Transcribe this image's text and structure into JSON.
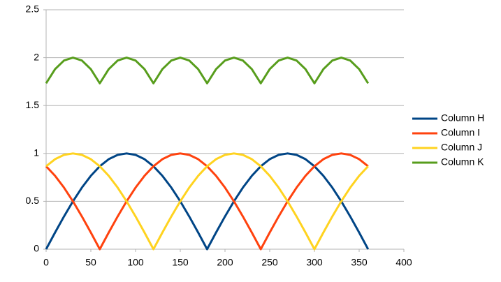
{
  "chart_data": {
    "type": "line",
    "x": [
      0,
      10,
      20,
      30,
      40,
      50,
      60,
      70,
      80,
      90,
      100,
      110,
      120,
      130,
      140,
      150,
      160,
      170,
      180,
      190,
      200,
      210,
      220,
      230,
      240,
      250,
      260,
      270,
      280,
      290,
      300,
      310,
      320,
      330,
      340,
      350,
      360
    ],
    "series": [
      {
        "name": "Column H",
        "color": "#004586",
        "values": [
          0,
          0.174,
          0.342,
          0.5,
          0.643,
          0.766,
          0.866,
          0.94,
          0.985,
          1,
          0.985,
          0.94,
          0.866,
          0.766,
          0.643,
          0.5,
          0.342,
          0.174,
          0,
          0.174,
          0.342,
          0.5,
          0.643,
          0.766,
          0.866,
          0.94,
          0.985,
          1,
          0.985,
          0.94,
          0.866,
          0.766,
          0.643,
          0.5,
          0.342,
          0.174,
          0
        ]
      },
      {
        "name": "Column I",
        "color": "#ff420e",
        "values": [
          0.866,
          0.766,
          0.643,
          0.5,
          0.342,
          0.174,
          0,
          0.174,
          0.342,
          0.5,
          0.643,
          0.766,
          0.866,
          0.94,
          0.985,
          1,
          0.985,
          0.94,
          0.866,
          0.766,
          0.643,
          0.5,
          0.342,
          0.174,
          0,
          0.174,
          0.342,
          0.5,
          0.643,
          0.766,
          0.866,
          0.94,
          0.985,
          1,
          0.985,
          0.94,
          0.866
        ]
      },
      {
        "name": "Column J",
        "color": "#ffd320",
        "values": [
          0.866,
          0.94,
          0.985,
          1,
          0.985,
          0.94,
          0.866,
          0.766,
          0.643,
          0.5,
          0.342,
          0.174,
          0,
          0.174,
          0.342,
          0.5,
          0.643,
          0.766,
          0.866,
          0.94,
          0.985,
          1,
          0.985,
          0.94,
          0.866,
          0.766,
          0.643,
          0.5,
          0.342,
          0.174,
          0,
          0.174,
          0.342,
          0.5,
          0.643,
          0.766,
          0.866
        ]
      },
      {
        "name": "Column K",
        "color": "#579d1c",
        "values": [
          1.732,
          1.88,
          1.97,
          2,
          1.97,
          1.88,
          1.732,
          1.88,
          1.97,
          2,
          1.97,
          1.88,
          1.732,
          1.88,
          1.97,
          2,
          1.97,
          1.88,
          1.732,
          1.88,
          1.97,
          2,
          1.97,
          1.88,
          1.732,
          1.88,
          1.97,
          2,
          1.97,
          1.88,
          1.732,
          1.88,
          1.97,
          2,
          1.97,
          1.88,
          1.732
        ]
      }
    ],
    "xlim": [
      0,
      400
    ],
    "xticks": [
      0,
      50,
      100,
      150,
      200,
      250,
      300,
      350,
      400
    ],
    "ylim": [
      0,
      2.5
    ],
    "yticks": [
      0,
      0.5,
      1,
      1.5,
      2,
      2.5
    ],
    "grid": true,
    "legend": "right"
  }
}
